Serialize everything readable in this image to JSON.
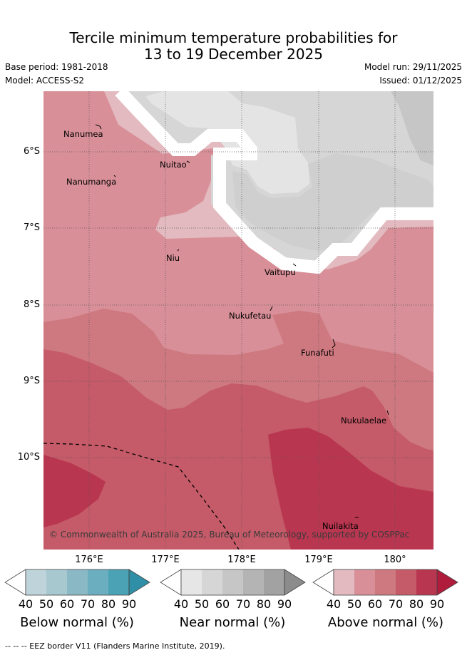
{
  "title": {
    "line1": "Tercile minimum temperature probabilities for",
    "line2": "13 to 19 December 2025"
  },
  "meta": {
    "base_period": "Base period: 1981-2018",
    "model": "Model: ACCESS-S2",
    "model_run": "Model run: 29/11/2025",
    "issued": "Issued: 01/12/2025"
  },
  "map": {
    "lon_labels": [
      "176°E",
      "177°E",
      "178°E",
      "179°E",
      "180°"
    ],
    "lat_labels": [
      "6°S",
      "7°S",
      "8°S",
      "9°S",
      "10°S"
    ],
    "places": [
      "Nanumea",
      "Nuitao",
      "Nanumanga",
      "Niu",
      "Vaitupu",
      "Nukufetau",
      "Funafuti",
      "Nukulaelae",
      "Nuilakita"
    ],
    "credit": "© Commonwealth of Australia 2025, Bureau of Meteorology, supported by COSPPac"
  },
  "legend": {
    "ticks": [
      "40",
      "50",
      "60",
      "70",
      "80",
      "90"
    ],
    "below": {
      "label": "Below normal (%)",
      "colors": [
        "#bfd4da",
        "#a6c8ce",
        "#8ab8c4",
        "#6baebf",
        "#4aa2b4",
        "#2f8fa6"
      ]
    },
    "near": {
      "label": "Near normal (%)",
      "colors": [
        "#e6e6e6",
        "#d6d6d6",
        "#c6c6c6",
        "#b4b4b4",
        "#a2a2a2",
        "#8c8c8c"
      ]
    },
    "above": {
      "label": "Above normal (%)",
      "colors": [
        "#e2bac0",
        "#d88f98",
        "#ce7880",
        "#c55a68",
        "#b93650",
        "#b01c3c"
      ]
    }
  },
  "footer": "--  --  -- EEZ border V11 (Flanders Marine Institute, 2019)."
}
